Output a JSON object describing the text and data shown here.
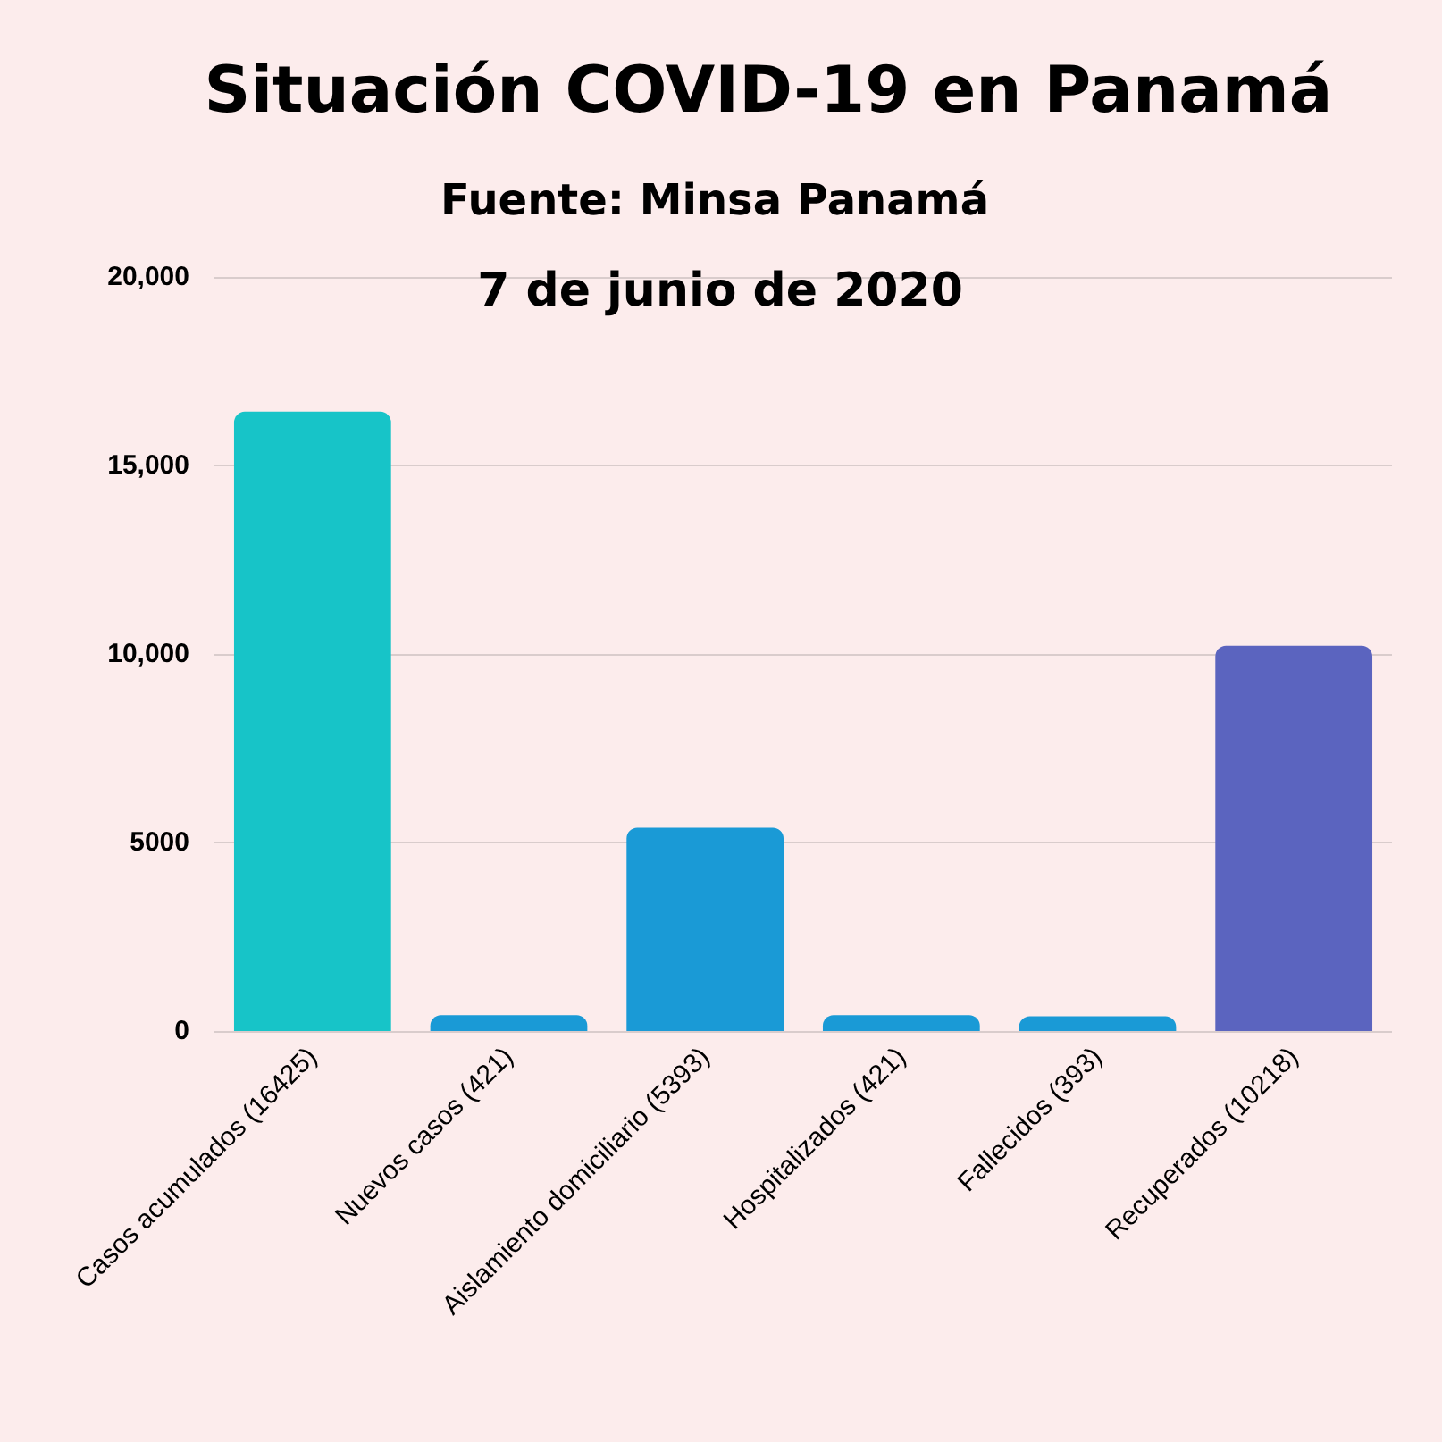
{
  "chart_data": {
    "type": "bar",
    "title": "Situación COVID-19 en Panamá",
    "subtitle": "Fuente: Minsa Panamá",
    "annotations": [
      "7 de junio de 2020"
    ],
    "categories": [
      "Casos acumulados (16425)",
      "Nuevos casos (421)",
      "Aislamiento domiciliario (5393)",
      "Hospitalizados (421)",
      "Fallecidos (393)",
      "Recuperados (10218)"
    ],
    "values": [
      16425,
      421,
      5393,
      421,
      393,
      10218
    ],
    "colors": [
      "#17c4c8",
      "#1a9ad6",
      "#1a9ad6",
      "#1a9ad6",
      "#1a9ad6",
      "#5b64bf"
    ],
    "ylim": [
      0,
      20000
    ],
    "yticks": [
      0,
      5000,
      {
        "value": 10000,
        "label": "10,000"
      },
      {
        "value": 15000,
        "label": "15,000"
      },
      {
        "value": 20000,
        "label": "20,000"
      }
    ],
    "grid": "y"
  }
}
